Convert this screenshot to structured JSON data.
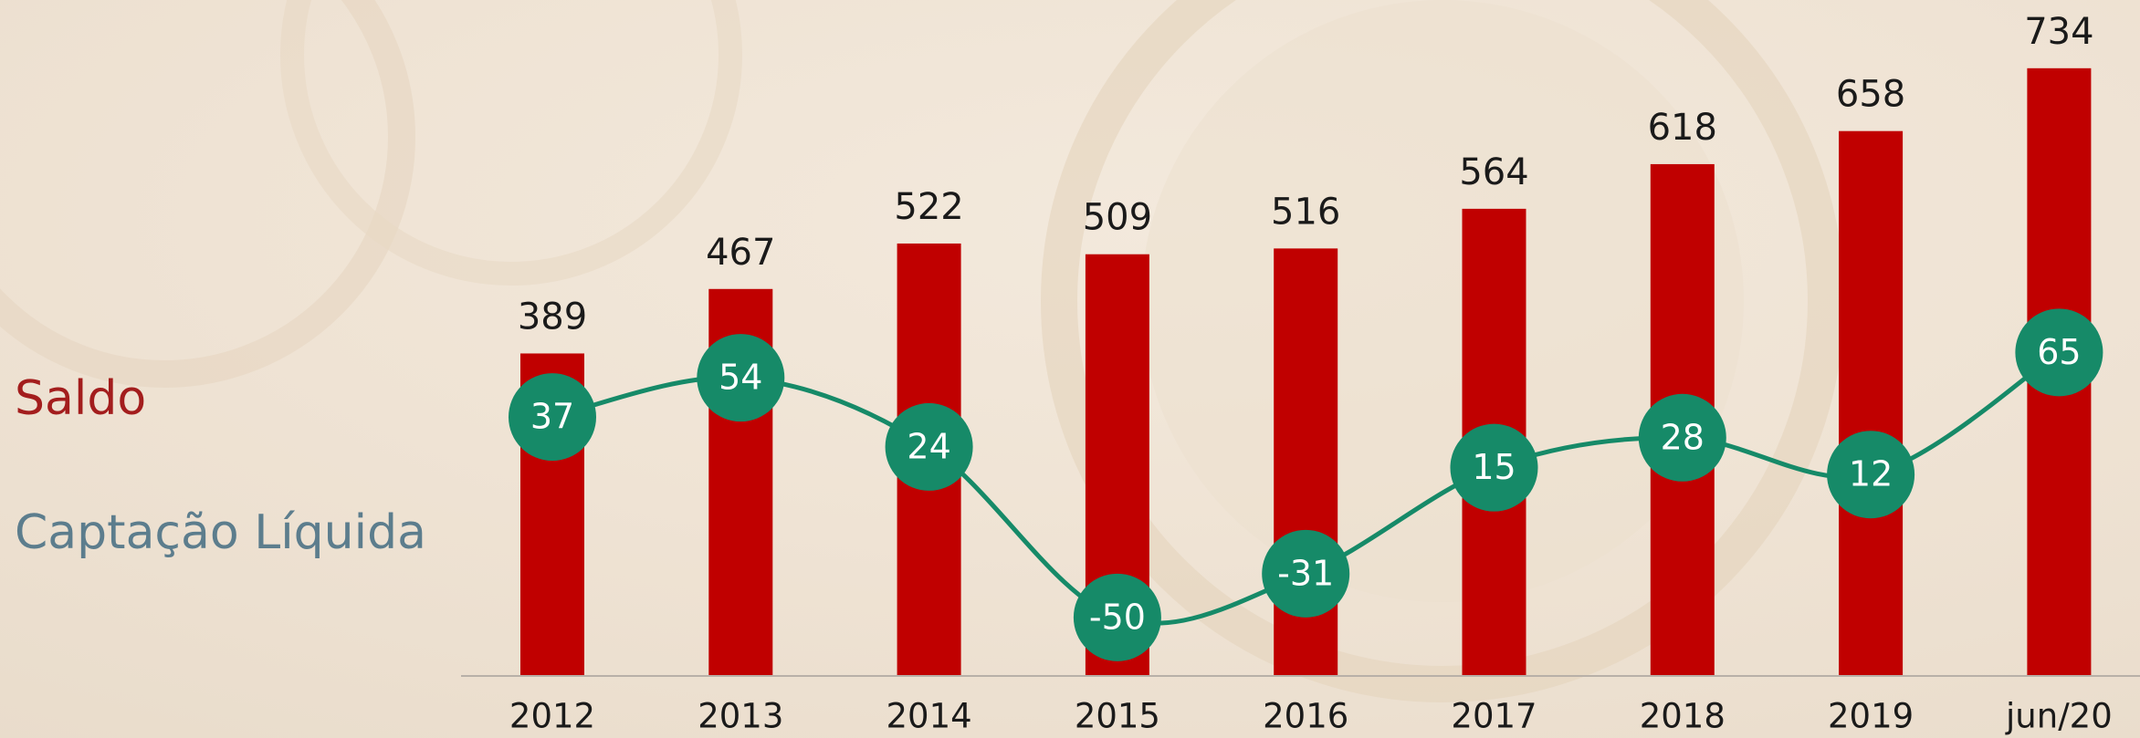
{
  "chart_data": {
    "type": "bar",
    "categories": [
      "2012",
      "2013",
      "2014",
      "2015",
      "2016",
      "2017",
      "2018",
      "2019",
      "jun/20"
    ],
    "series": [
      {
        "name": "Saldo",
        "color": "#c00000",
        "label_color": "#a31d1d",
        "type": "bar",
        "values": [
          389,
          467,
          522,
          509,
          516,
          564,
          618,
          658,
          734
        ]
      },
      {
        "name": "Captação Líquida",
        "color": "#168a68",
        "label_color": "#5c7d8d",
        "type": "line",
        "axis": "y2",
        "values": [
          37,
          54,
          24,
          -50,
          -31,
          15,
          28,
          12,
          65
        ]
      }
    ],
    "ylim": [
      0,
      800
    ],
    "y2lim": [
      -75,
      212
    ]
  }
}
